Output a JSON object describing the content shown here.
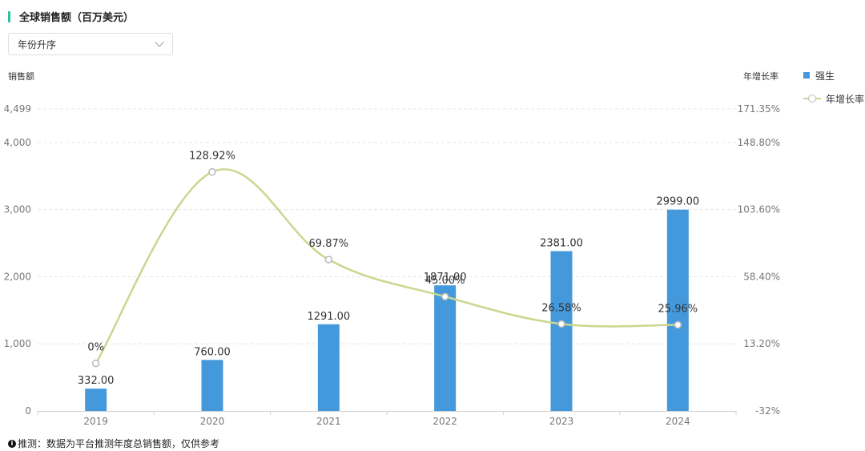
{
  "header": {
    "title": "全球销售额（百万美元）"
  },
  "sort": {
    "selected": "年份升序"
  },
  "footnote": {
    "text": "推测：数据为平台推测年度总销售额，仅供参考"
  },
  "colors": {
    "bar": "#4499dd",
    "line": "#c8d88e",
    "accent": "#2bc0a0"
  },
  "chart_data": {
    "type": "bar",
    "categories": [
      "2019",
      "2020",
      "2021",
      "2022",
      "2023",
      "2024"
    ],
    "ylabel": "销售额",
    "y2label": "年增长率",
    "ylim": [
      0,
      4499
    ],
    "y_ticks": [
      "0",
      "1,000",
      "2,000",
      "3,000",
      "4,000",
      "4,499"
    ],
    "y_tick_values": [
      0,
      1000,
      2000,
      3000,
      4000,
      4499
    ],
    "y2lim": [
      -32,
      171.35
    ],
    "y2_ticks": [
      "-32%",
      "13.20%",
      "58.40%",
      "103.60%",
      "148.80%",
      "171.35%"
    ],
    "y2_tick_values": [
      -32,
      13.2,
      58.4,
      103.6,
      148.8,
      171.35
    ],
    "series": [
      {
        "name": "强生",
        "axis": "left",
        "type": "bar",
        "values": [
          332,
          760,
          1291,
          1871,
          2381,
          2999
        ],
        "labels": [
          "332.00",
          "760.00",
          "1291.00",
          "1871.00",
          "2381.00",
          "2999.00"
        ]
      },
      {
        "name": "年增长率",
        "axis": "right",
        "type": "line",
        "values": [
          0,
          128.92,
          69.87,
          45.0,
          26.58,
          25.96
        ],
        "labels": [
          "0%",
          "128.92%",
          "69.87%",
          "45.00%",
          "26.58%",
          "25.96%"
        ]
      }
    ],
    "grid": true,
    "legend_position": "top-right"
  }
}
